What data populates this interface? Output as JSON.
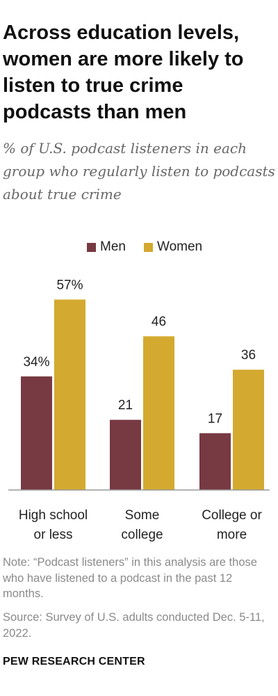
{
  "title": "Across education levels, women are more likely to listen to true crime podcasts than men",
  "subtitle": "% of U.S. podcast listeners in each group who regularly listen to podcasts about true crime",
  "colors": {
    "men": "#773942",
    "women": "#d4a92f",
    "axis": "#999999"
  },
  "chart_data": {
    "type": "bar",
    "categories": [
      [
        "High school",
        "or less"
      ],
      [
        "Some",
        "college"
      ],
      [
        "College or",
        "more"
      ]
    ],
    "series": [
      {
        "name": "Men",
        "values": [
          34,
          21,
          17
        ],
        "labels": [
          "34%",
          "21",
          "17"
        ]
      },
      {
        "name": "Women",
        "values": [
          57,
          46,
          36
        ],
        "labels": [
          "57%",
          "46",
          "36"
        ]
      }
    ],
    "ylim": [
      0,
      60
    ],
    "xlabel": "",
    "ylabel": "",
    "grid": false,
    "legend": "top-center"
  },
  "note": "Note: “Podcast listeners” in this analysis are those who have listened to a podcast in the past 12 months.",
  "source": "Source: Survey of U.S. adults conducted Dec. 5-11, 2022.",
  "brand": "PEW RESEARCH CENTER"
}
